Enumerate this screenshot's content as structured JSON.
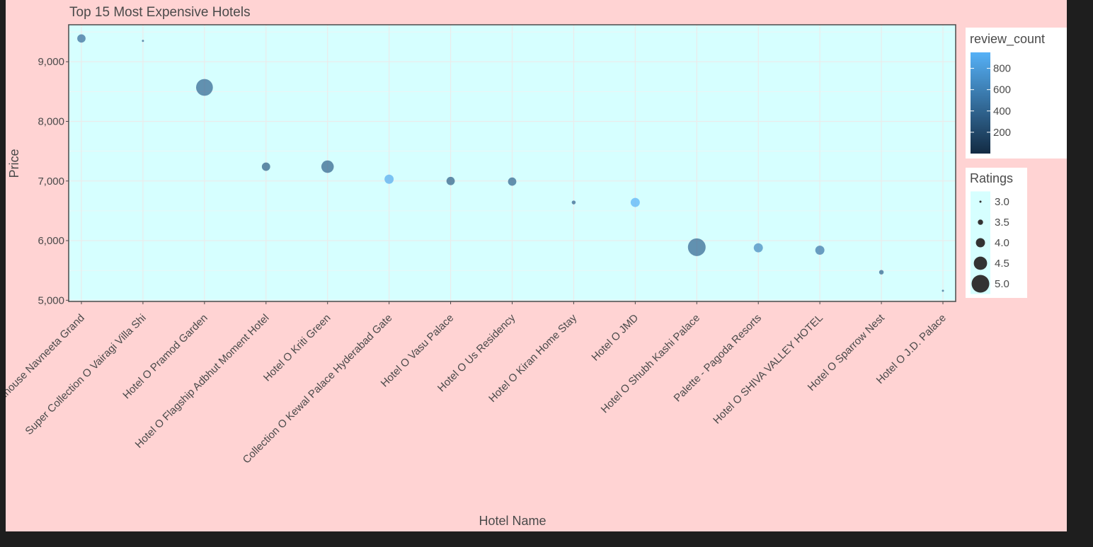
{
  "chart_data": {
    "type": "scatter",
    "title": "Top 15 Most Expensive Hotels",
    "xlabel": "Hotel Name",
    "ylabel": "Price",
    "ylim": [
      4980,
      9620
    ],
    "y_ticks": [
      5000,
      6000,
      7000,
      8000,
      9000
    ],
    "y_tick_labels": [
      "5,000",
      "6,000",
      "7,000",
      "8,000",
      "9,000"
    ],
    "grid": true,
    "categories": [
      "Townhouse Navneeta Grand",
      "Super Collection O Vairagi Villa Shi",
      "Hotel O Pramod Garden",
      "Hotel O Flagship Adbhut Moment Hotel",
      "Hotel O Kriti Green",
      "Collection O Kewal Palace Hyderabad Gate",
      "Hotel O Vasu Palace",
      "Hotel O Us Residency",
      "Hotel O Kiran Home Stay",
      "Hotel O JMD",
      "Hotel O Shubh Kashi Palace",
      "Palette - Pagoda Resorts",
      "Hotel O SHIVA VALLEY HOTEL",
      "Hotel O Sparrow Nest",
      "Hotel O J.D. Palace"
    ],
    "price": [
      9390,
      9350,
      8570,
      7240,
      7240,
      7030,
      7000,
      6990,
      6640,
      6640,
      5890,
      5880,
      5840,
      5470,
      5160
    ],
    "ratings": [
      3.9,
      3.0,
      4.9,
      3.9,
      4.4,
      4.0,
      3.9,
      3.9,
      3.3,
      4.0,
      5.0,
      4.0,
      4.0,
      3.4,
      3.0
    ],
    "review_count": [
      450,
      400,
      400,
      330,
      370,
      900,
      350,
      380,
      380,
      950,
      400,
      650,
      520,
      380,
      400
    ],
    "size_legend": {
      "title": "Ratings",
      "values": [
        3.0,
        3.5,
        4.0,
        4.5,
        5.0
      ],
      "labels": [
        "3.0",
        "3.5",
        "4.0",
        "4.5",
        "5.0"
      ]
    },
    "color_legend": {
      "title": "review_count",
      "range": [
        0,
        950
      ],
      "ticks": [
        200,
        400,
        600,
        800
      ],
      "tick_labels": [
        "200",
        "400",
        "600",
        "800"
      ],
      "low_color": "#132b43",
      "high_color": "#56b1f7"
    },
    "colors": {
      "panel_bg": "#d6ffff",
      "plot_bg": "#ffd3d3",
      "point_alpha": 0.7
    }
  }
}
